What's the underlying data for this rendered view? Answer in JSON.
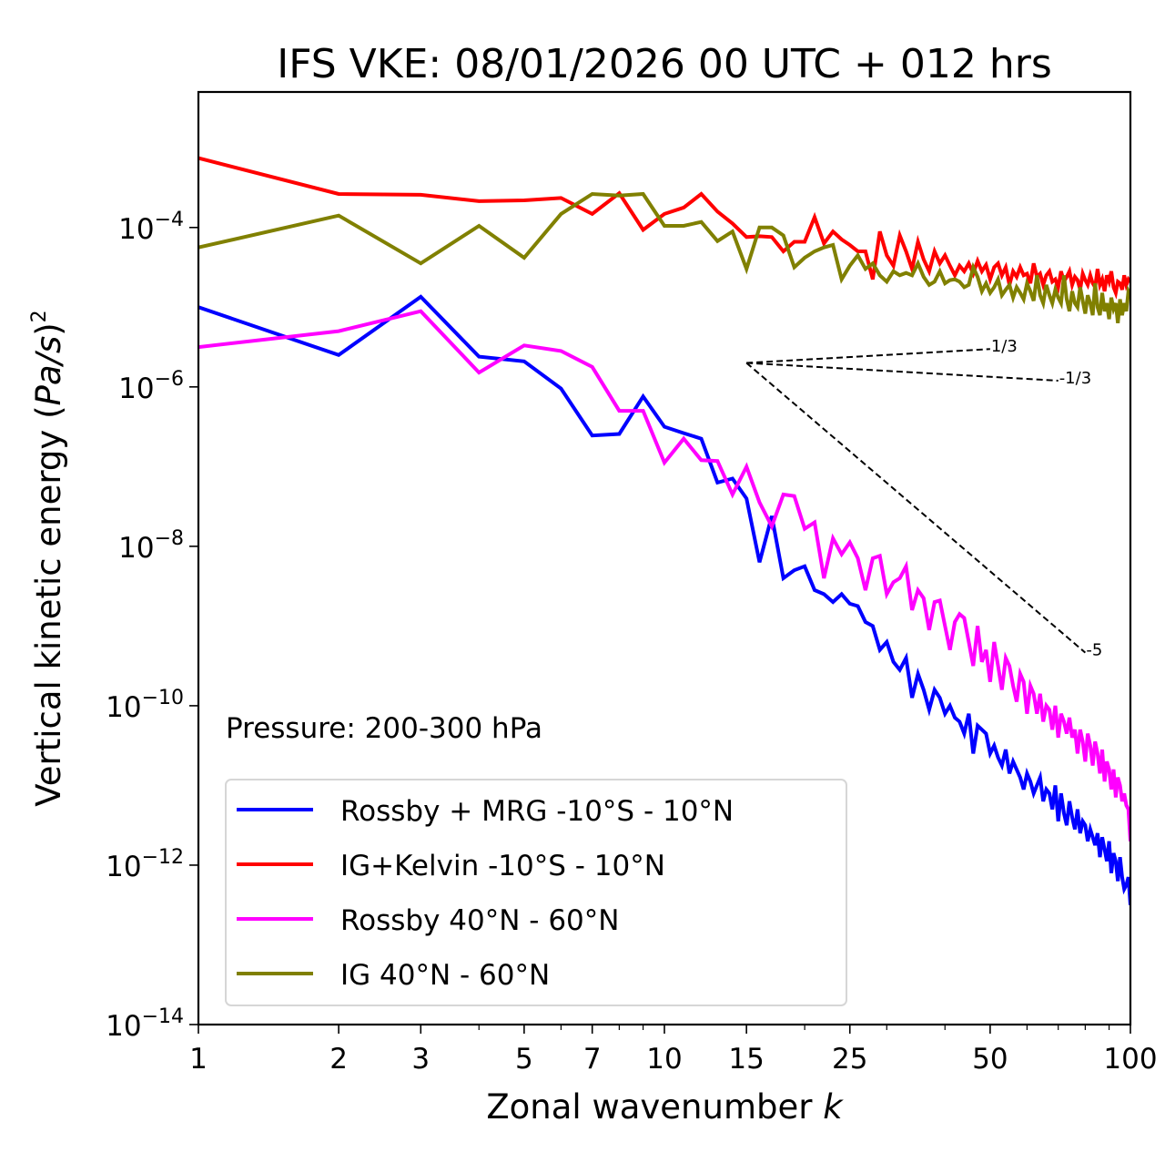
{
  "chart_data": {
    "type": "line",
    "title": "IFS VKE: 08/01/2026 00 UTC + 012 hrs",
    "xlabel_text": "Zonal wavenumber ",
    "xlabel_var": "k",
    "ylabel_text": "Vertical kinetic energy (",
    "ylabel_var": "Pa/s",
    "ylabel_close": ")",
    "ylabel_exp": "2",
    "xscale": "log",
    "yscale": "log",
    "xlim": [
      1,
      100
    ],
    "ylim_log10": [
      -14,
      -2.3
    ],
    "x_ticks": [
      {
        "value": 1,
        "label": "1"
      },
      {
        "value": 2,
        "label": "2"
      },
      {
        "value": 3,
        "label": "3"
      },
      {
        "value": 5,
        "label": "5"
      },
      {
        "value": 7,
        "label": "7"
      },
      {
        "value": 10,
        "label": "10"
      },
      {
        "value": 15,
        "label": "15"
      },
      {
        "value": 25,
        "label": "25"
      },
      {
        "value": 50,
        "label": "50"
      },
      {
        "value": 100,
        "label": "100"
      }
    ],
    "x_minor_ticks": [
      4,
      6,
      8,
      9,
      20,
      30,
      40,
      60,
      70,
      80,
      90
    ],
    "y_ticks": [
      {
        "exp": -4,
        "base": "10",
        "sup": "−4"
      },
      {
        "exp": -6,
        "base": "10",
        "sup": "−6"
      },
      {
        "exp": -8,
        "base": "10",
        "sup": "−8"
      },
      {
        "exp": -10,
        "base": "10",
        "sup": "−10"
      },
      {
        "exp": -12,
        "base": "10",
        "sup": "−12"
      },
      {
        "exp": -14,
        "base": "10",
        "sup": "−14"
      }
    ],
    "grid": false,
    "annotation": "Pressure: 200-300 hPa",
    "legend_position": "lower-left",
    "reference_lines": [
      {
        "label": "1/3",
        "slope": 0.3333,
        "k_start": 15,
        "k_end": 50,
        "v_start": 2e-06
      },
      {
        "label": "-1/3",
        "slope": -0.3333,
        "k_start": 15,
        "k_end": 70,
        "v_start": 2e-06
      },
      {
        "label": "-5",
        "slope": -5,
        "k_start": 15,
        "k_end": 80,
        "v_start": 2e-06
      }
    ],
    "series": [
      {
        "name": "Rossby + MRG -10°S - 10°N",
        "color": "#0000ff",
        "log10_values": [
          -5.0,
          -5.6,
          -4.87,
          -5.62,
          -5.68,
          -6.02,
          -6.61,
          -6.59,
          -6.12,
          -6.5,
          -6.58,
          -6.65,
          -7.2,
          -7.15,
          -7.4,
          -8.2,
          -7.62,
          -8.4,
          -8.3,
          -8.25,
          -8.55,
          -8.6,
          -8.7,
          -8.6,
          -8.72,
          -8.75,
          -8.95,
          -9.0,
          -9.3,
          -9.2,
          -9.45,
          -9.55,
          -9.4,
          -9.9,
          -9.6,
          -9.8,
          -10.05,
          -9.8,
          -9.9,
          -10.1,
          -10.0,
          -10.15,
          -10.2,
          -10.35,
          -10.1,
          -10.6,
          -10.25,
          -10.3,
          -10.35,
          -10.6,
          -10.5,
          -10.65,
          -10.75,
          -10.55,
          -10.85,
          -10.7,
          -10.8,
          -10.9,
          -11.05,
          -10.85,
          -10.95,
          -11.1,
          -11.0,
          -10.9,
          -11.2,
          -11.05,
          -11.1,
          -11.3,
          -11.0,
          -11.45,
          -11.1,
          -11.35,
          -11.5,
          -11.2,
          -11.4,
          -11.55,
          -11.3,
          -11.6,
          -11.45,
          -11.5,
          -11.7,
          -11.55,
          -11.65,
          -11.75,
          -11.6,
          -11.9,
          -11.65,
          -11.8,
          -11.95,
          -11.7,
          -12.1,
          -11.85,
          -11.95,
          -12.2,
          -11.9,
          -12.15,
          -12.3,
          -12.25,
          -12.15,
          -12.5
        ]
      },
      {
        "name": "IG+Kelvin -10°S - 10°N",
        "color": "#ff0000",
        "log10_values": [
          -3.13,
          -3.58,
          -3.59,
          -3.67,
          -3.66,
          -3.63,
          -3.83,
          -3.57,
          -4.03,
          -3.83,
          -3.75,
          -3.58,
          -3.8,
          -3.95,
          -4.12,
          -4.11,
          -4.12,
          -4.3,
          -4.18,
          -4.18,
          -3.87,
          -4.2,
          -4.05,
          -4.15,
          -4.22,
          -4.3,
          -4.3,
          -4.65,
          -4.05,
          -4.35,
          -4.48,
          -4.1,
          -4.3,
          -4.52,
          -4.18,
          -4.4,
          -4.55,
          -4.3,
          -4.45,
          -4.35,
          -4.48,
          -4.6,
          -4.48,
          -4.55,
          -4.45,
          -4.58,
          -4.42,
          -4.55,
          -4.47,
          -4.65,
          -4.5,
          -4.45,
          -4.6,
          -4.5,
          -4.72,
          -4.55,
          -4.62,
          -4.5,
          -4.6,
          -4.58,
          -4.7,
          -4.45,
          -4.62,
          -4.58,
          -4.72,
          -4.6,
          -4.55,
          -4.68,
          -4.65,
          -4.75,
          -4.55,
          -4.68,
          -4.62,
          -4.55,
          -4.72,
          -4.62,
          -4.66,
          -4.78,
          -4.58,
          -4.66,
          -4.72,
          -4.6,
          -4.7,
          -4.75,
          -4.52,
          -4.72,
          -4.65,
          -4.8,
          -4.6,
          -4.68,
          -4.55,
          -4.75,
          -4.82,
          -4.68,
          -4.7,
          -4.78,
          -4.6,
          -4.72,
          -4.65,
          -4.68
        ]
      },
      {
        "name": "Rossby 40°N - 60°N",
        "color": "#ff00ff",
        "log10_values": [
          -5.5,
          -5.3,
          -5.05,
          -5.82,
          -5.48,
          -5.55,
          -5.75,
          -6.3,
          -6.3,
          -6.95,
          -6.65,
          -6.92,
          -6.93,
          -7.35,
          -7.0,
          -7.45,
          -7.75,
          -7.35,
          -7.37,
          -7.78,
          -7.7,
          -8.4,
          -7.9,
          -8.1,
          -7.95,
          -8.15,
          -8.55,
          -8.15,
          -8.12,
          -8.6,
          -8.45,
          -8.4,
          -8.25,
          -8.8,
          -8.55,
          -8.65,
          -9.05,
          -8.7,
          -8.68,
          -9.0,
          -9.3,
          -8.95,
          -8.85,
          -8.9,
          -9.2,
          -9.5,
          -9.0,
          -9.45,
          -9.3,
          -9.7,
          -9.2,
          -9.5,
          -9.8,
          -9.4,
          -9.5,
          -9.75,
          -9.95,
          -9.6,
          -9.7,
          -10.1,
          -9.75,
          -9.85,
          -10.1,
          -9.85,
          -10.2,
          -10.0,
          -10.05,
          -10.3,
          -10.0,
          -10.4,
          -10.1,
          -10.2,
          -10.35,
          -10.15,
          -10.4,
          -10.3,
          -10.6,
          -10.3,
          -10.45,
          -10.7,
          -10.35,
          -10.5,
          -10.75,
          -10.45,
          -10.6,
          -10.85,
          -10.55,
          -10.95,
          -10.7,
          -10.8,
          -11.05,
          -10.8,
          -11.15,
          -10.9,
          -11.0,
          -11.2,
          -11.1,
          -11.25,
          -11.3,
          -11.7
        ]
      },
      {
        "name": "IG 40°N - 60°N",
        "color": "#808000",
        "log10_values": [
          -4.25,
          -3.85,
          -4.45,
          -3.98,
          -4.38,
          -3.83,
          -3.58,
          -3.6,
          -3.58,
          -3.98,
          -3.98,
          -3.93,
          -4.17,
          -4.05,
          -4.52,
          -4.0,
          -4.0,
          -4.1,
          -4.5,
          -4.38,
          -4.3,
          -4.25,
          -4.22,
          -4.65,
          -4.48,
          -4.35,
          -4.52,
          -4.45,
          -4.6,
          -4.68,
          -4.55,
          -4.6,
          -4.57,
          -4.6,
          -4.45,
          -4.62,
          -4.72,
          -4.68,
          -4.55,
          -4.7,
          -4.66,
          -4.65,
          -4.68,
          -4.75,
          -4.72,
          -4.5,
          -4.62,
          -4.8,
          -4.7,
          -4.82,
          -4.75,
          -4.65,
          -4.85,
          -4.78,
          -4.72,
          -4.88,
          -4.75,
          -4.82,
          -4.9,
          -4.7,
          -4.8,
          -4.92,
          -4.6,
          -4.85,
          -4.95,
          -4.72,
          -4.85,
          -4.95,
          -4.78,
          -4.88,
          -4.95,
          -4.6,
          -4.9,
          -5.05,
          -4.8,
          -4.95,
          -5.0,
          -4.75,
          -4.92,
          -5.08,
          -4.85,
          -4.95,
          -5.1,
          -4.7,
          -5.0,
          -5.1,
          -4.82,
          -5.05,
          -4.95,
          -5.15,
          -4.88,
          -5.02,
          -4.95,
          -5.2,
          -4.9,
          -5.1,
          -4.95,
          -5.05,
          -4.8,
          -4.85
        ]
      }
    ]
  }
}
